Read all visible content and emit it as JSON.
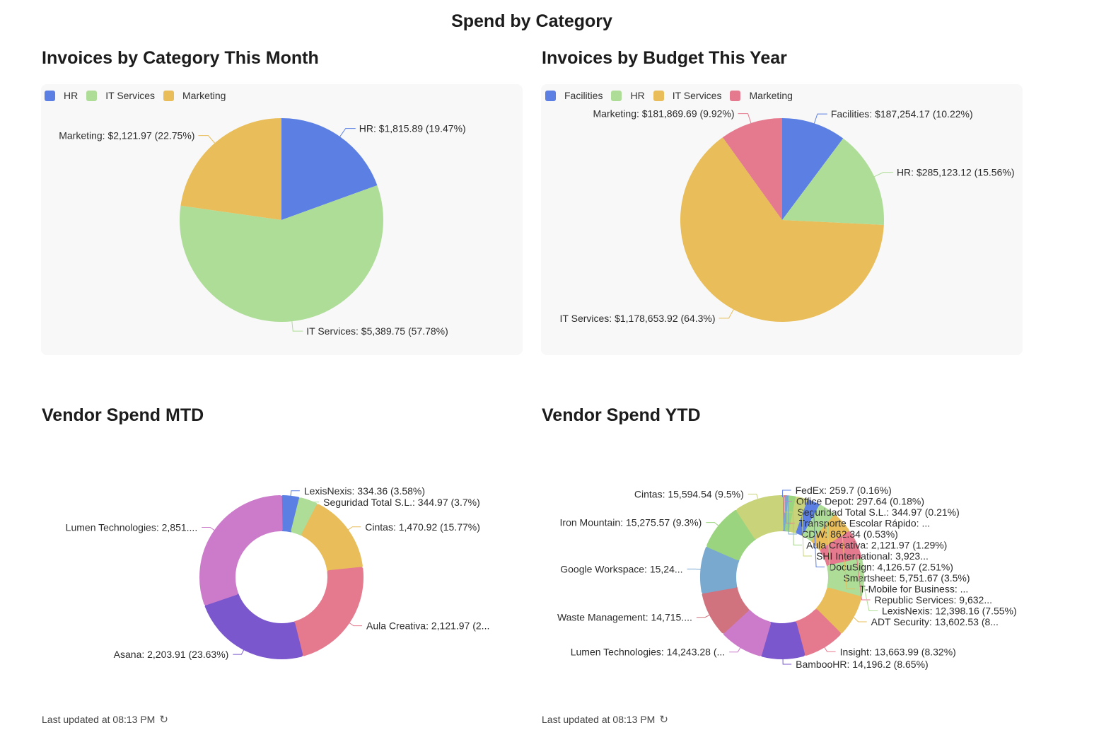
{
  "page": {
    "title": "Spend by Category"
  },
  "sections": [
    {
      "title": "Invoices by Category This Month"
    },
    {
      "title": "Invoices by Budget This Year"
    },
    {
      "title": "Vendor Spend MTD",
      "footer": "Last updated at 08:13 PM"
    },
    {
      "title": "Vendor Spend YTD",
      "footer": "Last updated at 08:13 PM"
    }
  ],
  "chart_data": [
    {
      "type": "pie",
      "title": "Invoices by Category This Month",
      "legend": [
        "HR",
        "IT Services",
        "Marketing"
      ],
      "slices": [
        {
          "name": "HR",
          "value": 1815.89,
          "percent": 19.47,
          "label": "HR: $1,815.89 (19.47%)",
          "color": "#5B7FE3"
        },
        {
          "name": "IT Services",
          "value": 5389.75,
          "percent": 57.78,
          "label": "IT Services: $5,389.75 (57.78%)",
          "color": "#AEDD98"
        },
        {
          "name": "Marketing",
          "value": 2121.97,
          "percent": 22.75,
          "label": "Marketing: $2,121.97 (22.75%)",
          "color": "#E8BD5A"
        }
      ]
    },
    {
      "type": "pie",
      "title": "Invoices by Budget This Year",
      "legend": [
        "Facilities",
        "HR",
        "IT Services",
        "Marketing"
      ],
      "slices": [
        {
          "name": "Facilities",
          "value": 187254.17,
          "percent": 10.22,
          "label": "Facilities: $187,254.17 (10.22%)",
          "color": "#5B7FE3"
        },
        {
          "name": "HR",
          "value": 285123.12,
          "percent": 15.56,
          "label": "HR: $285,123.12 (15.56%)",
          "color": "#AEDD98"
        },
        {
          "name": "IT Services",
          "value": 1178653.92,
          "percent": 64.3,
          "label": "IT Services: $1,178,653.92 (64.3%)",
          "color": "#E8BD5A"
        },
        {
          "name": "Marketing",
          "value": 181869.69,
          "percent": 9.92,
          "label": "Marketing: $181,869.69 (9.92%)",
          "color": "#E5798E"
        }
      ]
    },
    {
      "type": "donut",
      "title": "Vendor Spend MTD",
      "slices": [
        {
          "name": "LexisNexis",
          "value": 334.36,
          "percent": 3.58,
          "label": "LexisNexis: 334.36 (3.58%)",
          "color": "#5B7FE3"
        },
        {
          "name": "Seguridad Total S.L.",
          "value": 344.97,
          "percent": 3.7,
          "label": "Seguridad Total S.L.: 344.97 (3.7%)",
          "color": "#AEDD98"
        },
        {
          "name": "Cintas",
          "value": 1470.92,
          "percent": 15.77,
          "label": "Cintas: 1,470.92 (15.77%)",
          "color": "#E8BD5A"
        },
        {
          "name": "Aula Creativa",
          "value": 2121.97,
          "percent": 22.75,
          "label": "Aula Creativa: 2,121.97 (2...",
          "color": "#E5798E"
        },
        {
          "name": "Asana",
          "value": 2203.91,
          "percent": 23.63,
          "label": "Asana: 2,203.91 (23.63%)",
          "color": "#7B57CE"
        },
        {
          "name": "Lumen Technologies",
          "value": 2851.0,
          "percent": 30.57,
          "label": "Lumen Technologies: 2,851....",
          "color": "#CC7BCB"
        }
      ]
    },
    {
      "type": "donut",
      "title": "Vendor Spend YTD",
      "slices": [
        {
          "name": "FedEx",
          "value": 259.7,
          "percent": 0.16,
          "label": "FedEx: 259.7 (0.16%)",
          "color": "#5B7FE3"
        },
        {
          "name": "Office Depot",
          "value": 297.64,
          "percent": 0.18,
          "label": "Office Depot: 297.64 (0.18%)",
          "color": "#CC7BCB"
        },
        {
          "name": "Seguridad Total S.L.",
          "value": 344.97,
          "percent": 0.21,
          "label": "Seguridad Total S.L.: 344.97 (0.21%)",
          "color": "#C9D47A"
        },
        {
          "name": "Transporte Escolar Rápido",
          "value": 600,
          "percent": 0.37,
          "label": "Transporte Escolar Rápido: ...",
          "color": "#E5798E"
        },
        {
          "name": "CDW",
          "value": 862.34,
          "percent": 0.53,
          "label": "CDW: 862.34 (0.53%)",
          "color": "#7AA9D0"
        },
        {
          "name": "Aula Creativa",
          "value": 2121.97,
          "percent": 1.29,
          "label": "Aula Creativa: 2,121.97 (1.29%)",
          "color": "#9BD47E"
        },
        {
          "name": "SHI International",
          "value": 3923,
          "percent": 2.39,
          "label": "SHI International: 3,923...",
          "color": "#C9D47A"
        },
        {
          "name": "DocuSign",
          "value": 4126.57,
          "percent": 2.51,
          "label": "DocuSign: 4,126.57 (2.51%)",
          "color": "#5B7FE3"
        },
        {
          "name": "Smartsheet",
          "value": 5751.67,
          "percent": 3.5,
          "label": "Smartsheet: 5,751.67 (3.5%)",
          "color": "#AEDD98"
        },
        {
          "name": "T-Mobile for Business",
          "value": 7000,
          "percent": 4.26,
          "label": "T-Mobile for Business: ...",
          "color": "#E8BD5A"
        },
        {
          "name": "Republic Services",
          "value": 9632,
          "percent": 5.86,
          "label": "Republic Services: 9,632...",
          "color": "#E5798E"
        },
        {
          "name": "LexisNexis",
          "value": 12398.16,
          "percent": 7.55,
          "label": "LexisNexis: 12,398.16 (7.55%)",
          "color": "#AEDD98"
        },
        {
          "name": "ADT Security",
          "value": 13602.53,
          "percent": 8.28,
          "label": "ADT Security: 13,602.53 (8...",
          "color": "#E8BD5A"
        },
        {
          "name": "Insight",
          "value": 13663.99,
          "percent": 8.32,
          "label": "Insight: 13,663.99 (8.32%)",
          "color": "#E5798E"
        },
        {
          "name": "BambooHR",
          "value": 14196.2,
          "percent": 8.65,
          "label": "BambooHR: 14,196.2 (8.65%)",
          "color": "#7B57CE"
        },
        {
          "name": "Lumen Technologies",
          "value": 14243.28,
          "percent": 8.67,
          "label": "Lumen Technologies: 14,243.28 (...",
          "color": "#CC7BCB"
        },
        {
          "name": "Waste Management",
          "value": 14715,
          "percent": 8.96,
          "label": "Waste Management: 14,715....",
          "color": "#D0737E"
        },
        {
          "name": "Google Workspace",
          "value": 15240,
          "percent": 9.28,
          "label": "Google Workspace: 15,24...",
          "color": "#7AA9D0"
        },
        {
          "name": "Iron Mountain",
          "value": 15275.57,
          "percent": 9.3,
          "label": "Iron Mountain: 15,275.57 (9.3%)",
          "color": "#9BD47E"
        },
        {
          "name": "Cintas",
          "value": 15594.54,
          "percent": 9.5,
          "label": "Cintas: 15,594.54 (9.5%)",
          "color": "#C9D47A"
        }
      ]
    }
  ]
}
